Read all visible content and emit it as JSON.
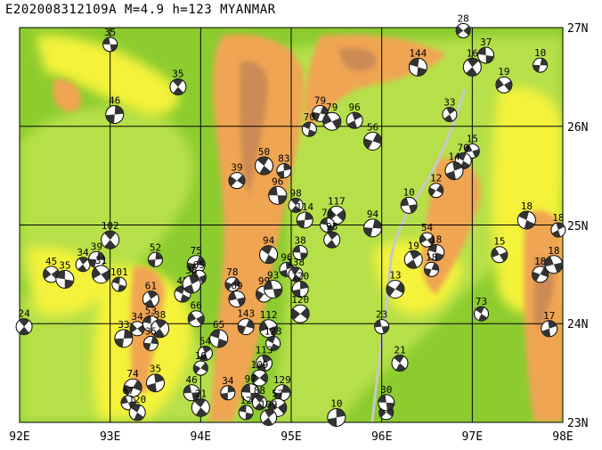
{
  "title": "E202008312109A  M=4.9  h=123  MYANMAR",
  "colors": {
    "land_low": "#8ccc2e",
    "land_mid": "#b6e04a",
    "land_yellow": "#f4f23a",
    "land_orange": "#f0a552",
    "land_brown": "#cc8a55",
    "grid": "#000000",
    "river": "#c8c8c8",
    "beachball_dark": "#333333",
    "beachball_light": "#ffffff"
  },
  "axes": {
    "lon_ticks": [
      "92E",
      "93E",
      "94E",
      "95E",
      "96E",
      "97E",
      "98E"
    ],
    "lat_ticks": [
      "23N",
      "24N",
      "25N",
      "26N",
      "27N"
    ],
    "lon_range": [
      92,
      98
    ],
    "lat_range": [
      23,
      27
    ]
  },
  "mechanisms": [
    {
      "lon": 93.0,
      "lat": 26.83,
      "depth": "35"
    },
    {
      "lon": 93.75,
      "lat": 26.4,
      "depth": "35"
    },
    {
      "lon": 93.05,
      "lat": 26.12,
      "depth": "46"
    },
    {
      "lon": 96.9,
      "lat": 26.97,
      "depth": "28"
    },
    {
      "lon": 97.15,
      "lat": 26.72,
      "depth": "37"
    },
    {
      "lon": 97.0,
      "lat": 26.6,
      "depth": "16"
    },
    {
      "lon": 97.75,
      "lat": 26.62,
      "depth": "10"
    },
    {
      "lon": 97.35,
      "lat": 26.42,
      "depth": "19"
    },
    {
      "lon": 96.4,
      "lat": 26.6,
      "depth": "144"
    },
    {
      "lon": 96.75,
      "lat": 26.12,
      "depth": "33"
    },
    {
      "lon": 95.32,
      "lat": 26.13,
      "depth": "79"
    },
    {
      "lon": 95.45,
      "lat": 26.05,
      "depth": "79"
    },
    {
      "lon": 95.2,
      "lat": 25.97,
      "depth": "70"
    },
    {
      "lon": 95.7,
      "lat": 26.06,
      "depth": "96"
    },
    {
      "lon": 95.9,
      "lat": 25.85,
      "depth": "56"
    },
    {
      "lon": 97.0,
      "lat": 25.75,
      "depth": "15"
    },
    {
      "lon": 96.9,
      "lat": 25.65,
      "depth": "70"
    },
    {
      "lon": 96.8,
      "lat": 25.55,
      "depth": "14"
    },
    {
      "lon": 96.6,
      "lat": 25.35,
      "depth": "12"
    },
    {
      "lon": 96.3,
      "lat": 25.2,
      "depth": "10"
    },
    {
      "lon": 94.7,
      "lat": 25.6,
      "depth": "50"
    },
    {
      "lon": 94.92,
      "lat": 25.55,
      "depth": "83"
    },
    {
      "lon": 94.4,
      "lat": 25.45,
      "depth": "39"
    },
    {
      "lon": 94.85,
      "lat": 25.3,
      "depth": "96"
    },
    {
      "lon": 95.05,
      "lat": 25.2,
      "depth": "98"
    },
    {
      "lon": 95.15,
      "lat": 25.05,
      "depth": "114"
    },
    {
      "lon": 95.5,
      "lat": 25.1,
      "depth": "117"
    },
    {
      "lon": 95.4,
      "lat": 25.0,
      "depth": "76"
    },
    {
      "lon": 95.45,
      "lat": 24.85,
      "depth": "95"
    },
    {
      "lon": 95.9,
      "lat": 24.97,
      "depth": "94"
    },
    {
      "lon": 96.5,
      "lat": 24.85,
      "depth": "54"
    },
    {
      "lon": 96.6,
      "lat": 24.72,
      "depth": "18"
    },
    {
      "lon": 96.35,
      "lat": 24.65,
      "depth": "19"
    },
    {
      "lon": 96.55,
      "lat": 24.55,
      "depth": "18"
    },
    {
      "lon": 97.3,
      "lat": 24.7,
      "depth": "15"
    },
    {
      "lon": 97.6,
      "lat": 25.05,
      "depth": "18"
    },
    {
      "lon": 97.95,
      "lat": 24.95,
      "depth": "18"
    },
    {
      "lon": 97.75,
      "lat": 24.5,
      "depth": "18"
    },
    {
      "lon": 97.9,
      "lat": 24.6,
      "depth": "18"
    },
    {
      "lon": 97.1,
      "lat": 24.1,
      "depth": "73"
    },
    {
      "lon": 97.85,
      "lat": 23.95,
      "depth": "17"
    },
    {
      "lon": 96.15,
      "lat": 24.35,
      "depth": "13"
    },
    {
      "lon": 96.0,
      "lat": 23.97,
      "depth": "23"
    },
    {
      "lon": 96.2,
      "lat": 23.6,
      "depth": "21"
    },
    {
      "lon": 95.5,
      "lat": 23.05,
      "depth": "10"
    },
    {
      "lon": 96.05,
      "lat": 23.1,
      "depth": "20"
    },
    {
      "lon": 96.05,
      "lat": 23.2,
      "depth": "30"
    },
    {
      "lon": 93.0,
      "lat": 24.85,
      "depth": "102"
    },
    {
      "lon": 93.5,
      "lat": 24.65,
      "depth": "52"
    },
    {
      "lon": 92.35,
      "lat": 24.5,
      "depth": "45"
    },
    {
      "lon": 92.5,
      "lat": 24.45,
      "depth": "35"
    },
    {
      "lon": 92.7,
      "lat": 24.6,
      "depth": "34"
    },
    {
      "lon": 92.85,
      "lat": 24.65,
      "depth": "39"
    },
    {
      "lon": 92.9,
      "lat": 24.5,
      "depth": "31"
    },
    {
      "lon": 93.1,
      "lat": 24.4,
      "depth": "101"
    },
    {
      "lon": 93.45,
      "lat": 24.25,
      "depth": "61"
    },
    {
      "lon": 93.95,
      "lat": 24.6,
      "depth": "75"
    },
    {
      "lon": 93.98,
      "lat": 24.47,
      "depth": "65"
    },
    {
      "lon": 93.8,
      "lat": 24.3,
      "depth": "42"
    },
    {
      "lon": 93.9,
      "lat": 24.4,
      "depth": "38"
    },
    {
      "lon": 94.35,
      "lat": 24.4,
      "depth": "78"
    },
    {
      "lon": 94.4,
      "lat": 24.25,
      "depth": "69"
    },
    {
      "lon": 94.75,
      "lat": 24.7,
      "depth": "94"
    },
    {
      "lon": 94.95,
      "lat": 24.55,
      "depth": "96"
    },
    {
      "lon": 94.7,
      "lat": 24.3,
      "depth": "99"
    },
    {
      "lon": 94.8,
      "lat": 24.35,
      "depth": "93"
    },
    {
      "lon": 95.05,
      "lat": 24.5,
      "depth": "138"
    },
    {
      "lon": 95.1,
      "lat": 24.35,
      "depth": "120"
    },
    {
      "lon": 95.1,
      "lat": 24.1,
      "depth": "120"
    },
    {
      "lon": 95.1,
      "lat": 24.72,
      "depth": "38"
    },
    {
      "lon": 92.05,
      "lat": 23.97,
      "depth": "24"
    },
    {
      "lon": 93.15,
      "lat": 23.85,
      "depth": "33"
    },
    {
      "lon": 93.3,
      "lat": 23.95,
      "depth": "34"
    },
    {
      "lon": 93.45,
      "lat": 24.0,
      "depth": "53"
    },
    {
      "lon": 93.55,
      "lat": 23.95,
      "depth": "38"
    },
    {
      "lon": 93.45,
      "lat": 23.8,
      "depth": "35"
    },
    {
      "lon": 93.95,
      "lat": 24.05,
      "depth": "66"
    },
    {
      "lon": 94.2,
      "lat": 23.85,
      "depth": "65"
    },
    {
      "lon": 94.05,
      "lat": 23.7,
      "depth": "54"
    },
    {
      "lon": 94.5,
      "lat": 23.97,
      "depth": "143"
    },
    {
      "lon": 94.75,
      "lat": 23.95,
      "depth": "112"
    },
    {
      "lon": 94.8,
      "lat": 23.8,
      "depth": "123"
    },
    {
      "lon": 94.7,
      "lat": 23.6,
      "depth": "113"
    },
    {
      "lon": 93.25,
      "lat": 23.35,
      "depth": "74"
    },
    {
      "lon": 93.2,
      "lat": 23.2,
      "depth": "67"
    },
    {
      "lon": 93.3,
      "lat": 23.1,
      "depth": "120"
    },
    {
      "lon": 93.5,
      "lat": 23.4,
      "depth": "35"
    },
    {
      "lon": 94.0,
      "lat": 23.55,
      "depth": "10"
    },
    {
      "lon": 93.9,
      "lat": 23.3,
      "depth": "46"
    },
    {
      "lon": 94.0,
      "lat": 23.15,
      "depth": "21"
    },
    {
      "lon": 94.3,
      "lat": 23.3,
      "depth": "34"
    },
    {
      "lon": 94.65,
      "lat": 23.45,
      "depth": "109"
    },
    {
      "lon": 94.55,
      "lat": 23.3,
      "depth": "97"
    },
    {
      "lon": 94.65,
      "lat": 23.2,
      "depth": "88"
    },
    {
      "lon": 94.9,
      "lat": 23.3,
      "depth": "129"
    },
    {
      "lon": 94.85,
      "lat": 23.15,
      "depth": "57"
    },
    {
      "lon": 94.5,
      "lat": 23.1,
      "depth": "12"
    },
    {
      "lon": 94.75,
      "lat": 23.05,
      "depth": "109"
    }
  ]
}
